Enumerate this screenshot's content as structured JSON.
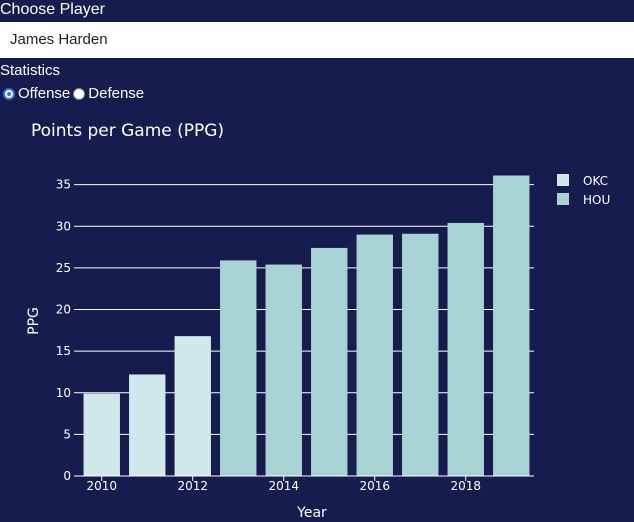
{
  "controls": {
    "player_label": "Choose Player",
    "player_value": "James Harden",
    "statistics_label": "Statistics",
    "radio_options": [
      "Offense",
      "Defense"
    ],
    "radio_selected": "Offense"
  },
  "chart_data": {
    "type": "bar",
    "title": "Points per Game (PPG)",
    "xlabel": "Year",
    "ylabel": "PPG",
    "ylim": [
      0,
      37
    ],
    "yticks": [
      0,
      5,
      10,
      15,
      20,
      25,
      30,
      35
    ],
    "xticks": [
      2010,
      2012,
      2014,
      2016,
      2018
    ],
    "grid": true,
    "legend_position": "top-right",
    "series": [
      {
        "name": "OKC",
        "color": "#d1e9ea",
        "x": [
          2010,
          2011,
          2012
        ],
        "values": [
          9.9,
          12.2,
          16.8
        ]
      },
      {
        "name": "HOU",
        "color": "#a8d3d4",
        "x": [
          2013,
          2014,
          2015,
          2016,
          2017,
          2018,
          2019
        ],
        "values": [
          25.9,
          25.4,
          27.4,
          29.0,
          29.1,
          30.4,
          36.1
        ]
      }
    ]
  }
}
